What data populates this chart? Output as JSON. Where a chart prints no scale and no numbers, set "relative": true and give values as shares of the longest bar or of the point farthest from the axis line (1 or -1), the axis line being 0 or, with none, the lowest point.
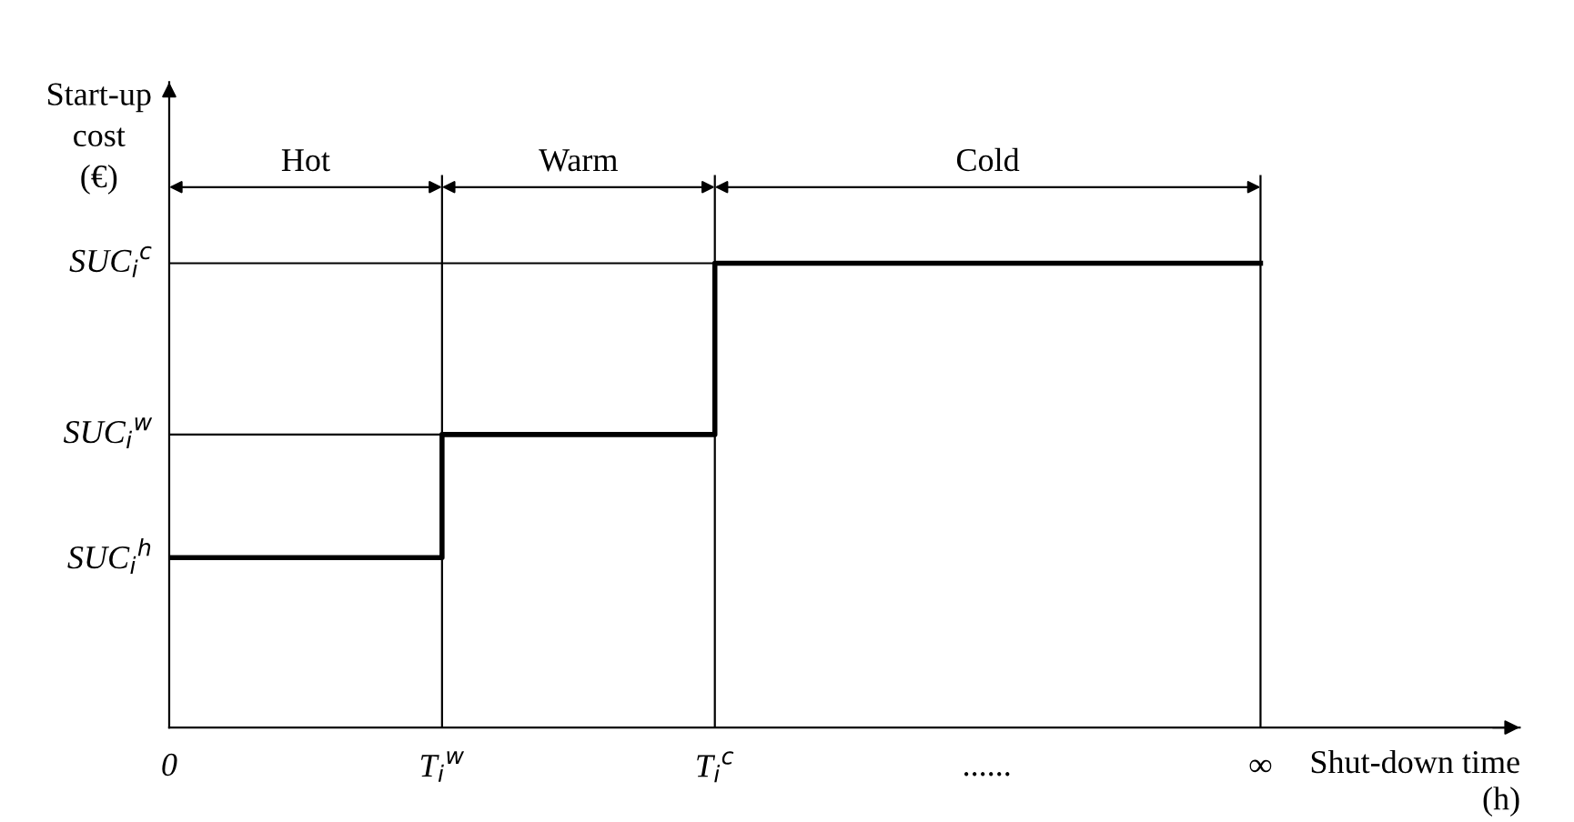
{
  "chart_data": {
    "type": "step",
    "relative": true,
    "ylabel": "Start-up\ncost\n(€)",
    "xlabel": "Shut-down time\n(h)",
    "categories": [
      "0",
      "T$_{i}$$^{w}$",
      "T$_{i}$$^{c}$",
      "......",
      "∞"
    ],
    "series": [
      {
        "color": "#000000",
        "values": [
          0.366,
          0.631,
          1,
          1,
          1
        ]
      }
    ],
    "tick_labels": "x",
    "annotations": [
      "SUC$_{i}$$^{h}$",
      "SUC$_{i}$$^{w}$",
      "SUC$_{i}$$^{c}$",
      "Hot",
      "Warm",
      "Cold"
    ],
    "grid": "x",
    "legend": false,
    "marker": "none",
    "line_style": "solid"
  }
}
